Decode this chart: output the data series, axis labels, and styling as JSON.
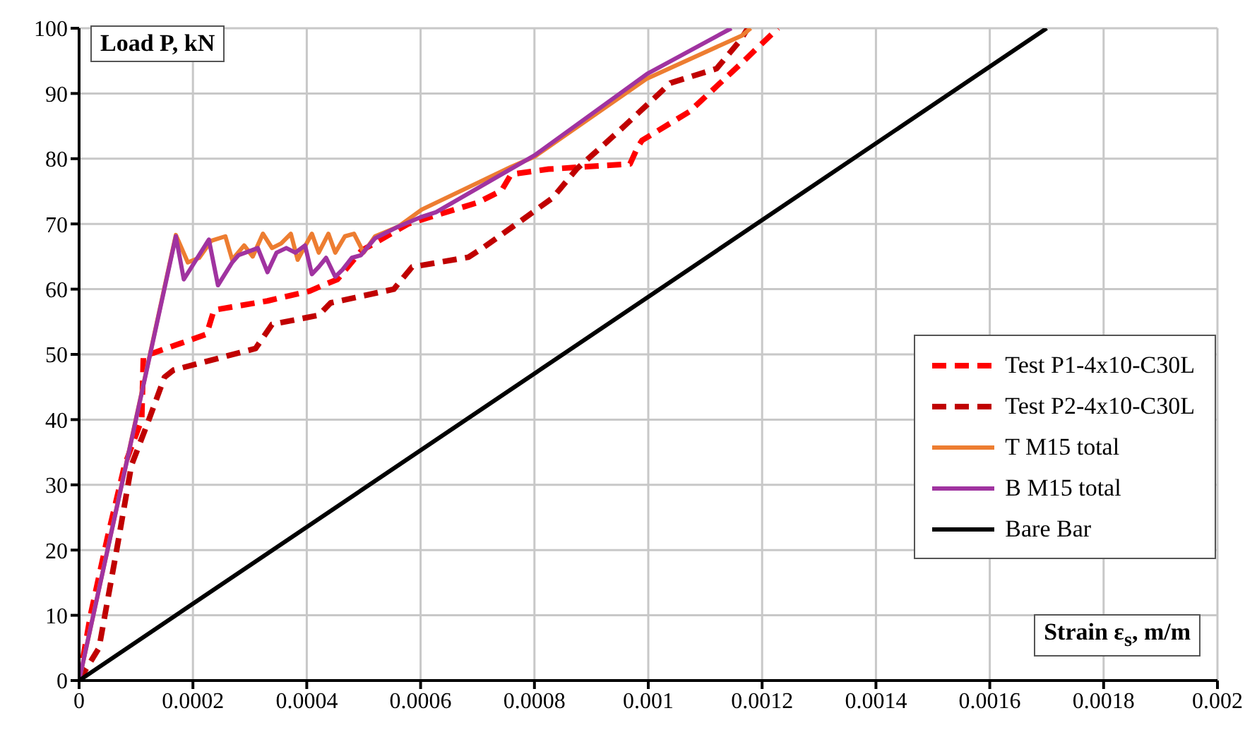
{
  "chart_data": {
    "type": "line",
    "xlabel": "Strain ε$_{s}$, m/m",
    "ylabel": "Load P, kN",
    "xlim": [
      0,
      0.002
    ],
    "ylim": [
      0,
      100
    ],
    "xticks": [
      0,
      0.0002,
      0.0004,
      0.0006,
      0.0008,
      0.001,
      0.0012,
      0.0014,
      0.0016,
      0.0018,
      0.002
    ],
    "yticks": [
      0,
      10,
      20,
      30,
      40,
      50,
      60,
      70,
      80,
      90,
      100
    ],
    "grid": true,
    "legend": "bottom right",
    "marker": "none",
    "series": [
      {
        "name": "Test P1-4x10-C30L",
        "color": "#ff0000",
        "line_style": "dashed",
        "x": [
          0,
          2e-05,
          5e-05,
          8e-05,
          0.00011,
          0.000113,
          0.00013,
          0.000224,
          0.000237,
          0.000331,
          0.000405,
          0.000434,
          0.000454,
          0.000496,
          0.000578,
          0.000701,
          0.000742,
          0.000759,
          0.000825,
          0.000968,
          0.000981,
          0.000989,
          0.001072,
          0.001162,
          0.001228
        ],
        "values": [
          0,
          10,
          22,
          33,
          40,
          49.8,
          50.2,
          53.1,
          56.8,
          58.2,
          59.7,
          60.8,
          61.5,
          65.9,
          70,
          73.3,
          75.1,
          77.6,
          78.4,
          79.2,
          81.7,
          82.8,
          87.2,
          94.5,
          100
        ]
      },
      {
        "name": "Test P2-4x10-C30L",
        "color": "#c00000",
        "line_style": "dashed",
        "x": [
          0,
          3.5e-05,
          6.7e-05,
          9.2e-05,
          0.000121,
          0.00015,
          0.000166,
          0.00031,
          0.000339,
          0.000421,
          0.000442,
          0.000553,
          0.000585,
          0.000684,
          0.000709,
          0.000775,
          0.000832,
          0.000874,
          0.000948,
          0.001039,
          0.001079,
          0.00112,
          0.001162,
          0.001175
        ],
        "values": [
          0,
          5,
          20.5,
          33,
          39.6,
          46.5,
          47.6,
          50.9,
          54.6,
          56,
          57.9,
          60,
          63.4,
          64.9,
          66.3,
          70.4,
          74,
          78.4,
          84.2,
          91.6,
          92.7,
          93.8,
          98.2,
          100
        ]
      },
      {
        "name": "T M15 total",
        "color": "#ed7d31",
        "line_style": "solid",
        "x": [
          0,
          0.00017,
          0.000191,
          0.000211,
          0.000232,
          0.000257,
          0.000269,
          0.00029,
          0.000305,
          0.000323,
          0.000339,
          0.000355,
          0.000372,
          0.000384,
          0.000409,
          0.000421,
          0.000438,
          0.00045,
          0.000467,
          0.000483,
          0.0005,
          0.00052,
          0.000561,
          0.000602,
          0.000758,
          0.0008,
          0.000998,
          0.001165,
          0.00118
        ],
        "values": [
          0,
          68.3,
          64.1,
          64.8,
          67.4,
          68.1,
          64.5,
          66.7,
          65,
          68.5,
          66.3,
          67,
          68.5,
          64.5,
          68.5,
          65.6,
          68.5,
          65.6,
          68.1,
          68.5,
          65.6,
          68.1,
          69.6,
          72.2,
          78.7,
          80.3,
          92.3,
          98.9,
          100
        ]
      },
      {
        "name": "B M15 total",
        "color": "#a033a0",
        "line_style": "solid",
        "x": [
          0,
          0.00017,
          0.000184,
          0.000228,
          0.000244,
          0.000269,
          0.00028,
          0.000314,
          0.000331,
          0.000347,
          0.000364,
          0.00038,
          0.000397,
          0.000409,
          0.000421,
          0.000434,
          0.00045,
          0.000463,
          0.000479,
          0.000495,
          0.00052,
          0.000561,
          0.000602,
          0.000627,
          0.0008,
          0.000998,
          0.001146
        ],
        "values": [
          0,
          68.1,
          61.5,
          67.6,
          60.6,
          64.1,
          65.2,
          66.3,
          62.6,
          65.6,
          66.3,
          65.6,
          66.7,
          62.3,
          63.4,
          64.8,
          61.9,
          63,
          64.8,
          65.2,
          67.8,
          69.6,
          71.1,
          71.8,
          80.5,
          93,
          100
        ]
      },
      {
        "name": "Bare Bar",
        "color": "#000000",
        "line_style": "solid",
        "x": [
          0,
          0.0017
        ],
        "values": [
          0,
          100
        ]
      }
    ]
  }
}
